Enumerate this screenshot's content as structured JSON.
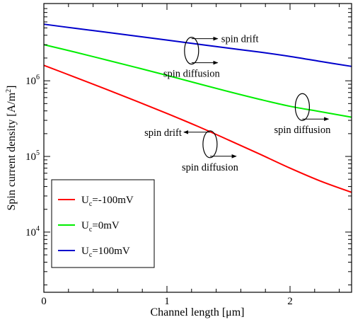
{
  "chart_data": {
    "type": "line",
    "xlabel": "Channel length [μm]",
    "ylabel": {
      "base": "Spin current density [A/m",
      "sup": "2",
      "end": "]"
    },
    "xlim": [
      0,
      2.5
    ],
    "ylim": [
      1600.0,
      10500000.0
    ],
    "yscale": "log",
    "grid": false,
    "legend_position": "bottom-left",
    "xticks": [
      {
        "value": 0,
        "label": "0"
      },
      {
        "value": 1,
        "label": "1"
      },
      {
        "value": 2,
        "label": "2"
      }
    ],
    "yticks": [
      {
        "value": 10000,
        "base": "10",
        "exp": "4"
      },
      {
        "value": 100000,
        "base": "10",
        "exp": "5"
      },
      {
        "value": 1000000,
        "base": "10",
        "exp": "6"
      }
    ],
    "series": [
      {
        "key": "s-100",
        "legend": {
          "pre": "U",
          "sub": "c",
          "post": "=-100mV"
        },
        "color": "#ff0000",
        "points": [
          [
            0,
            1600000.0
          ],
          [
            0.25,
            1120000.0
          ],
          [
            0.5,
            780000.0
          ],
          [
            0.75,
            540000.0
          ],
          [
            1.0,
            370000.0
          ],
          [
            1.25,
            250000.0
          ],
          [
            1.5,
            165000.0
          ],
          [
            1.75,
            108000.0
          ],
          [
            2.0,
            70000.0
          ],
          [
            2.25,
            47000.0
          ],
          [
            2.5,
            33500.0
          ]
        ]
      },
      {
        "key": "s0",
        "legend": {
          "pre": "U",
          "sub": "c",
          "post": "=0mV"
        },
        "color": "#00ee00",
        "points": [
          [
            0,
            3000000.0
          ],
          [
            0.25,
            2400000.0
          ],
          [
            0.5,
            1900000.0
          ],
          [
            0.75,
            1500000.0
          ],
          [
            1.0,
            1180000.0
          ],
          [
            1.25,
            920000.0
          ],
          [
            1.5,
            720000.0
          ],
          [
            1.75,
            570000.0
          ],
          [
            2.0,
            460000.0
          ],
          [
            2.25,
            390000.0
          ],
          [
            2.5,
            330000.0
          ]
        ]
      },
      {
        "key": "s100",
        "legend": {
          "pre": "U",
          "sub": "c",
          "post": "=100mV"
        },
        "color": "#0000cc",
        "points": [
          [
            0,
            5600000.0
          ],
          [
            0.25,
            4950000.0
          ],
          [
            0.5,
            4400000.0
          ],
          [
            0.75,
            3900000.0
          ],
          [
            1.0,
            3450000.0
          ],
          [
            1.25,
            3050000.0
          ],
          [
            1.5,
            2700000.0
          ],
          [
            1.75,
            2400000.0
          ],
          [
            2.0,
            2100000.0
          ],
          [
            2.25,
            1800000.0
          ],
          [
            2.5,
            1550000.0
          ]
        ]
      }
    ],
    "annotations": [
      {
        "key": "a1",
        "x": 1.2,
        "y": 2500000.0,
        "upper": {
          "text": "spin drift",
          "dir": "right"
        },
        "lower": {
          "text": "spin diffusion",
          "dir": "right"
        }
      },
      {
        "key": "a2",
        "x": 2.1,
        "y": 450000.0,
        "upper": {
          "text": "",
          "dir": "none"
        },
        "lower": {
          "text": "spin diffusion",
          "dir": "right"
        }
      },
      {
        "key": "a3",
        "x": 1.35,
        "y": 145000.0,
        "upper": {
          "text": "spin drift",
          "dir": "left"
        },
        "lower": {
          "text": "spin diffusion",
          "dir": "right"
        }
      }
    ]
  }
}
